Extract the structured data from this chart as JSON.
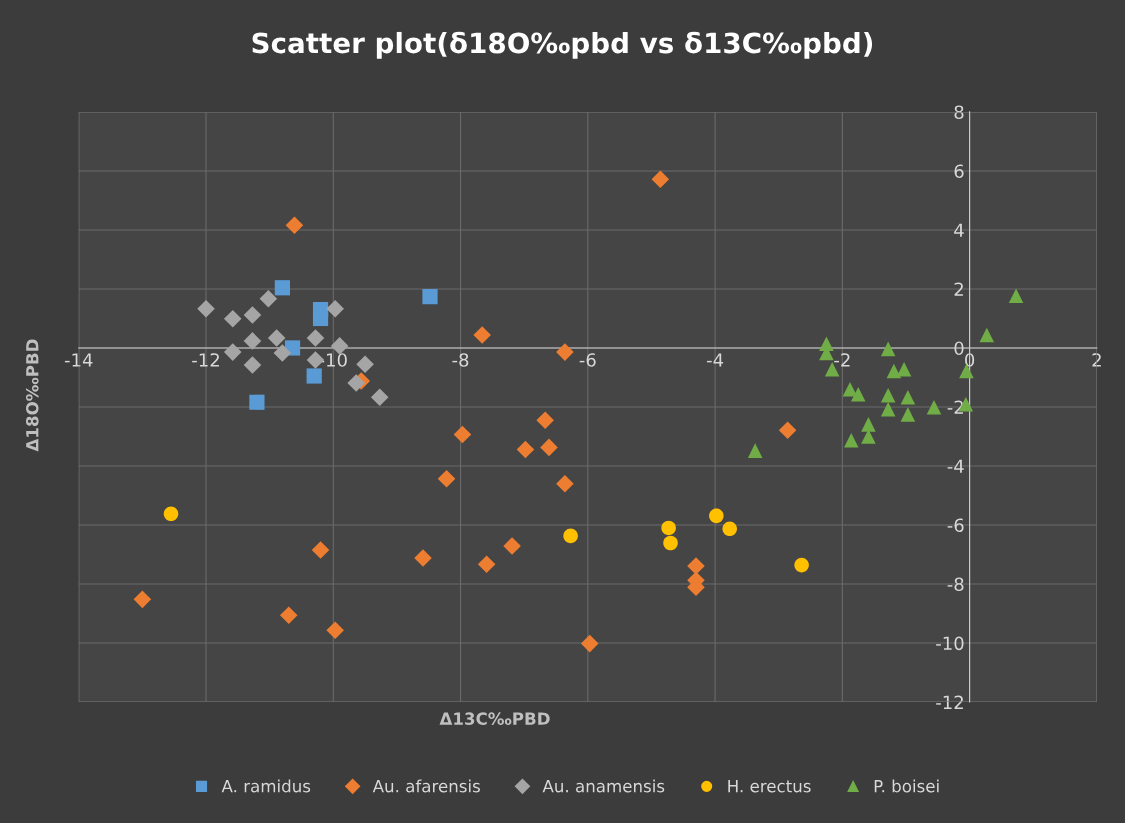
{
  "chart_data": {
    "type": "scatter",
    "title": "Scatter plot(δ18O‰pbd vs δ13C‰pbd)",
    "xlabel": "Δ13C‰PBD",
    "ylabel": "Δ18O‰PBD",
    "xlim": [
      -14,
      2
    ],
    "xticks": [
      -14,
      -12,
      -10,
      -8,
      -6,
      -4,
      -2,
      0,
      2
    ],
    "ylim": [
      -12,
      8
    ],
    "yticks": [
      -12,
      -10,
      -8,
      -6,
      -4,
      -2,
      0,
      2,
      4,
      6,
      8
    ],
    "grid": true,
    "legend": "bottom",
    "series": [
      {
        "name": "A. ramidus",
        "color": "#5b9bd5",
        "marker": "square",
        "x": [
          -10.8,
          -10.2,
          -10.2,
          -10.64,
          -10.3,
          -11.2,
          -8.48
        ],
        "values": [
          2.04,
          1.3,
          1.0,
          0.0,
          -0.95,
          -1.84,
          1.74
        ]
      },
      {
        "name": "Au. afarensis",
        "color": "#ed7d31",
        "marker": "diamond",
        "x": [
          -10.61,
          -9.56,
          -4.86,
          -7.66,
          -6.36,
          -7.97,
          -8.22,
          -10.2,
          -8.59,
          -13.0,
          -10.7,
          -9.97,
          -6.67,
          -6.98,
          -6.61,
          -6.36,
          -7.19,
          -7.59,
          -4.3,
          -4.3,
          -4.3,
          -5.97,
          -2.86
        ],
        "values": [
          4.16,
          -1.12,
          5.72,
          0.44,
          -0.14,
          -2.93,
          -4.43,
          -6.85,
          -7.12,
          -8.52,
          -9.06,
          -9.57,
          -2.45,
          -3.44,
          -3.37,
          -4.6,
          -6.71,
          -7.33,
          -7.39,
          -7.87,
          -8.11,
          -10.02,
          -2.79
        ]
      },
      {
        "name": "Au. anamensis",
        "color": "#a5a5a5",
        "marker": "diamond",
        "x": [
          -12.0,
          -11.58,
          -11.27,
          -11.02,
          -9.97,
          -11.27,
          -10.89,
          -10.28,
          -9.9,
          -11.58,
          -10.8,
          -10.28,
          -11.27,
          -9.5,
          -9.64,
          -9.27
        ],
        "values": [
          1.33,
          0.99,
          1.12,
          1.67,
          1.33,
          0.24,
          0.34,
          0.34,
          0.07,
          -0.14,
          -0.17,
          -0.41,
          -0.58,
          -0.55,
          -1.19,
          -1.67
        ]
      },
      {
        "name": "H. erectus",
        "color": "#ffc000",
        "marker": "circle",
        "x": [
          -12.55,
          -6.27,
          -4.73,
          -4.7,
          -3.98,
          -3.77,
          -2.64
        ],
        "values": [
          -5.62,
          -6.37,
          -6.1,
          -6.61,
          -5.69,
          -6.13,
          -7.36
        ]
      },
      {
        "name": "P. boisei",
        "color": "#70ad47",
        "marker": "triangle",
        "x": [
          -2.25,
          -2.25,
          -2.16,
          -1.28,
          -1.19,
          -1.03,
          -1.88,
          -1.75,
          -1.28,
          -0.97,
          -1.28,
          -0.97,
          -0.56,
          -0.06,
          -0.05,
          0.27,
          0.73,
          -1.59,
          -1.59,
          -1.86,
          -3.37
        ],
        "values": [
          0.14,
          -0.17,
          -0.72,
          -0.03,
          -0.78,
          -0.72,
          -1.4,
          -1.57,
          -1.6,
          -1.67,
          -2.08,
          -2.25,
          -2.01,
          -1.91,
          -0.78,
          0.44,
          1.77,
          -2.59,
          -3.0,
          -3.13,
          -3.48
        ]
      }
    ]
  }
}
